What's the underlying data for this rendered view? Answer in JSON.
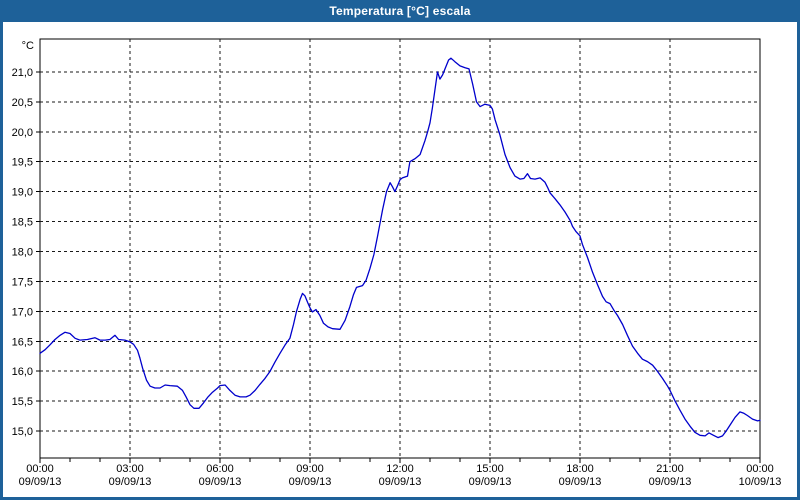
{
  "window": {
    "title": "Temperatura [°C] escala"
  },
  "colors": {
    "title_bar": "#1E6199",
    "window_border": "#1E6199",
    "title_text": "#FFFFFF",
    "plot_background": "#FFFFFF",
    "plot_border": "#000000",
    "grid": "#1A1A1A",
    "line": "#0000CC",
    "tick_label": "#000000"
  },
  "chart_data": {
    "type": "line",
    "title": "Temperatura [°C] escala",
    "ylabel": "°C",
    "xlabel": "",
    "legend": "none",
    "grid": "dashed grid at 0.5 °C horizontal and 3 h vertical intervals",
    "ylim": [
      14.55,
      21.55
    ],
    "xlim_hours": [
      0,
      24
    ],
    "x_minor_tick_hours": 1,
    "yticks": [
      {
        "value": 21.0,
        "label": "21,0"
      },
      {
        "value": 20.5,
        "label": "20,5"
      },
      {
        "value": 20.0,
        "label": "20,0"
      },
      {
        "value": 19.5,
        "label": "19,5"
      },
      {
        "value": 19.0,
        "label": "19,0"
      },
      {
        "value": 18.5,
        "label": "18,5"
      },
      {
        "value": 18.0,
        "label": "18,0"
      },
      {
        "value": 17.5,
        "label": "17,5"
      },
      {
        "value": 17.0,
        "label": "17,0"
      },
      {
        "value": 16.5,
        "label": "16,5"
      },
      {
        "value": 16.0,
        "label": "16,0"
      },
      {
        "value": 15.5,
        "label": "15,5"
      },
      {
        "value": 15.0,
        "label": "15,0"
      }
    ],
    "xticks": [
      {
        "hour": 0,
        "time": "00:00",
        "date": "09/09/13"
      },
      {
        "hour": 3,
        "time": "03:00",
        "date": "09/09/13"
      },
      {
        "hour": 6,
        "time": "06:00",
        "date": "09/09/13"
      },
      {
        "hour": 9,
        "time": "09:00",
        "date": "09/09/13"
      },
      {
        "hour": 12,
        "time": "12:00",
        "date": "09/09/13"
      },
      {
        "hour": 15,
        "time": "15:00",
        "date": "09/09/13"
      },
      {
        "hour": 18,
        "time": "18:00",
        "date": "09/09/13"
      },
      {
        "hour": 21,
        "time": "21:00",
        "date": "09/09/13"
      },
      {
        "hour": 24,
        "time": "00:00",
        "date": "10/09/13"
      }
    ],
    "series": [
      {
        "name": "Temperatura",
        "color": "#0000CC",
        "points": [
          [
            0,
            16.3
          ],
          [
            0.17,
            16.36
          ],
          [
            0.33,
            16.44
          ],
          [
            0.5,
            16.53
          ],
          [
            0.67,
            16.6
          ],
          [
            0.83,
            16.65
          ],
          [
            1,
            16.63
          ],
          [
            1.17,
            16.55
          ],
          [
            1.33,
            16.52
          ],
          [
            1.58,
            16.53
          ],
          [
            1.83,
            16.56
          ],
          [
            2,
            16.52
          ],
          [
            2.17,
            16.52
          ],
          [
            2.33,
            16.53
          ],
          [
            2.5,
            16.6
          ],
          [
            2.62,
            16.53
          ],
          [
            2.83,
            16.52
          ],
          [
            3,
            16.49
          ],
          [
            3.12,
            16.45
          ],
          [
            3.25,
            16.35
          ],
          [
            3.33,
            16.22
          ],
          [
            3.42,
            16.05
          ],
          [
            3.55,
            15.85
          ],
          [
            3.67,
            15.75
          ],
          [
            3.83,
            15.72
          ],
          [
            4,
            15.72
          ],
          [
            4.17,
            15.77
          ],
          [
            4.33,
            15.76
          ],
          [
            4.58,
            15.75
          ],
          [
            4.75,
            15.68
          ],
          [
            4.87,
            15.57
          ],
          [
            5,
            15.44
          ],
          [
            5.13,
            15.38
          ],
          [
            5.3,
            15.38
          ],
          [
            5.45,
            15.47
          ],
          [
            5.6,
            15.57
          ],
          [
            5.75,
            15.65
          ],
          [
            5.92,
            15.72
          ],
          [
            6,
            15.76
          ],
          [
            6.17,
            15.77
          ],
          [
            6.33,
            15.68
          ],
          [
            6.5,
            15.6
          ],
          [
            6.67,
            15.57
          ],
          [
            6.87,
            15.57
          ],
          [
            7,
            15.6
          ],
          [
            7.17,
            15.68
          ],
          [
            7.33,
            15.78
          ],
          [
            7.5,
            15.88
          ],
          [
            7.67,
            16
          ],
          [
            7.83,
            16.15
          ],
          [
            8,
            16.3
          ],
          [
            8.17,
            16.44
          ],
          [
            8.33,
            16.55
          ],
          [
            8.45,
            16.78
          ],
          [
            8.55,
            17
          ],
          [
            8.67,
            17.2
          ],
          [
            8.75,
            17.3
          ],
          [
            8.83,
            17.26
          ],
          [
            8.92,
            17.15
          ],
          [
            9,
            17.06
          ],
          [
            9.08,
            16.99
          ],
          [
            9.2,
            17.03
          ],
          [
            9.33,
            16.93
          ],
          [
            9.45,
            16.8
          ],
          [
            9.6,
            16.74
          ],
          [
            9.75,
            16.71
          ],
          [
            10,
            16.7
          ],
          [
            10.17,
            16.85
          ],
          [
            10.33,
            17.08
          ],
          [
            10.45,
            17.28
          ],
          [
            10.55,
            17.4
          ],
          [
            10.75,
            17.43
          ],
          [
            10.87,
            17.52
          ],
          [
            11,
            17.72
          ],
          [
            11.13,
            17.95
          ],
          [
            11.25,
            18.25
          ],
          [
            11.42,
            18.7
          ],
          [
            11.55,
            19
          ],
          [
            11.67,
            19.15
          ],
          [
            11.75,
            19.08
          ],
          [
            11.83,
            19
          ],
          [
            11.92,
            19.1
          ],
          [
            12,
            19.2
          ],
          [
            12.08,
            19.23
          ],
          [
            12.25,
            19.26
          ],
          [
            12.33,
            19.5
          ],
          [
            12.5,
            19.55
          ],
          [
            12.67,
            19.62
          ],
          [
            12.83,
            19.85
          ],
          [
            12.92,
            20
          ],
          [
            13,
            20.15
          ],
          [
            13.08,
            20.4
          ],
          [
            13.17,
            20.72
          ],
          [
            13.25,
            21
          ],
          [
            13.33,
            20.88
          ],
          [
            13.42,
            20.95
          ],
          [
            13.5,
            21.05
          ],
          [
            13.62,
            21.2
          ],
          [
            13.7,
            21.23
          ],
          [
            13.83,
            21.17
          ],
          [
            14,
            21.1
          ],
          [
            14.17,
            21.07
          ],
          [
            14.3,
            21.05
          ],
          [
            14.42,
            20.8
          ],
          [
            14.55,
            20.5
          ],
          [
            14.67,
            20.42
          ],
          [
            14.83,
            20.46
          ],
          [
            15,
            20.44
          ],
          [
            15.08,
            20.38
          ],
          [
            15.17,
            20.2
          ],
          [
            15.33,
            19.95
          ],
          [
            15.5,
            19.62
          ],
          [
            15.67,
            19.4
          ],
          [
            15.83,
            19.26
          ],
          [
            16,
            19.21
          ],
          [
            16.13,
            19.22
          ],
          [
            16.25,
            19.3
          ],
          [
            16.35,
            19.22
          ],
          [
            16.5,
            19.21
          ],
          [
            16.67,
            19.23
          ],
          [
            16.83,
            19.16
          ],
          [
            16.92,
            19.07
          ],
          [
            17,
            18.98
          ],
          [
            17.17,
            18.88
          ],
          [
            17.33,
            18.78
          ],
          [
            17.5,
            18.66
          ],
          [
            17.67,
            18.52
          ],
          [
            17.75,
            18.42
          ],
          [
            17.87,
            18.33
          ],
          [
            18,
            18.26
          ],
          [
            18.08,
            18.12
          ],
          [
            18.25,
            17.9
          ],
          [
            18.42,
            17.65
          ],
          [
            18.58,
            17.45
          ],
          [
            18.75,
            17.25
          ],
          [
            18.87,
            17.16
          ],
          [
            19,
            17.13
          ],
          [
            19.13,
            17.02
          ],
          [
            19.25,
            16.93
          ],
          [
            19.42,
            16.78
          ],
          [
            19.58,
            16.6
          ],
          [
            19.75,
            16.42
          ],
          [
            19.92,
            16.3
          ],
          [
            20.08,
            16.2
          ],
          [
            20.25,
            16.16
          ],
          [
            20.42,
            16.1
          ],
          [
            20.58,
            16
          ],
          [
            20.75,
            15.88
          ],
          [
            20.92,
            15.75
          ],
          [
            21,
            15.68
          ],
          [
            21.17,
            15.5
          ],
          [
            21.33,
            15.35
          ],
          [
            21.5,
            15.2
          ],
          [
            21.67,
            15.08
          ],
          [
            21.83,
            14.98
          ],
          [
            22,
            14.93
          ],
          [
            22.17,
            14.92
          ],
          [
            22.3,
            14.97
          ],
          [
            22.45,
            14.93
          ],
          [
            22.6,
            14.89
          ],
          [
            22.75,
            14.92
          ],
          [
            22.87,
            15
          ],
          [
            23,
            15.1
          ],
          [
            23.17,
            15.23
          ],
          [
            23.33,
            15.32
          ],
          [
            23.45,
            15.3
          ],
          [
            23.58,
            15.26
          ],
          [
            23.75,
            15.2
          ],
          [
            23.92,
            15.17
          ],
          [
            24,
            15.18
          ]
        ]
      }
    ]
  }
}
